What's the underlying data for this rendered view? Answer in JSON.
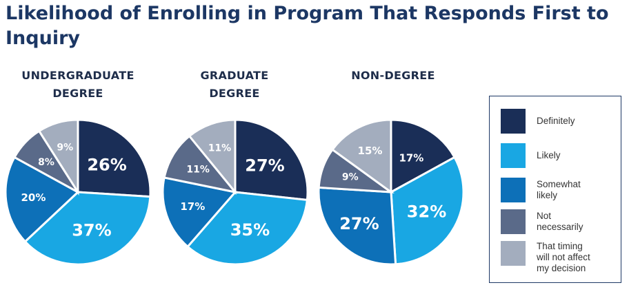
{
  "title": "Likelihood of Enrolling in Program That Responds First to Inquiry",
  "chart_data": [
    {
      "type": "pie",
      "title": "UNDERGRADUATE DEGREE",
      "categories": [
        "Definitely",
        "Likely",
        "Somewhat likely",
        "Not necessarily",
        "That timing will not affect my decision"
      ],
      "values": [
        26,
        37,
        20,
        8,
        9
      ],
      "labels": [
        "26%",
        "37%",
        "20%",
        "8%",
        "9%"
      ]
    },
    {
      "type": "pie",
      "title": "GRADUATE DEGREE",
      "categories": [
        "Definitely",
        "Likely",
        "Somewhat likely",
        "Not necessarily",
        "That timing will not affect my decision"
      ],
      "values": [
        27,
        35,
        17,
        11,
        11
      ],
      "labels": [
        "27%",
        "35%",
        "17%",
        "11%",
        "11%"
      ]
    },
    {
      "type": "pie",
      "title": "NON-DEGREE",
      "categories": [
        "Definitely",
        "Likely",
        "Somewhat likely",
        "Not necessarily",
        "That timing will not affect my decision"
      ],
      "values": [
        17,
        32,
        27,
        9,
        15
      ],
      "labels": [
        "17%",
        "32%",
        "27%",
        "9%",
        "15%"
      ]
    }
  ],
  "legend": {
    "placement": "right",
    "items": [
      {
        "label": "Definitely",
        "color": "#1a2e57"
      },
      {
        "label": "Likely",
        "color": "#19a7e3"
      },
      {
        "label": "Somewhat\nlikely",
        "color": "#0d70b8"
      },
      {
        "label": "Not\nnecessarily",
        "color": "#5a6a89"
      },
      {
        "label": "That timing\nwill not affect\nmy decision",
        "color": "#a3adbe"
      }
    ]
  }
}
